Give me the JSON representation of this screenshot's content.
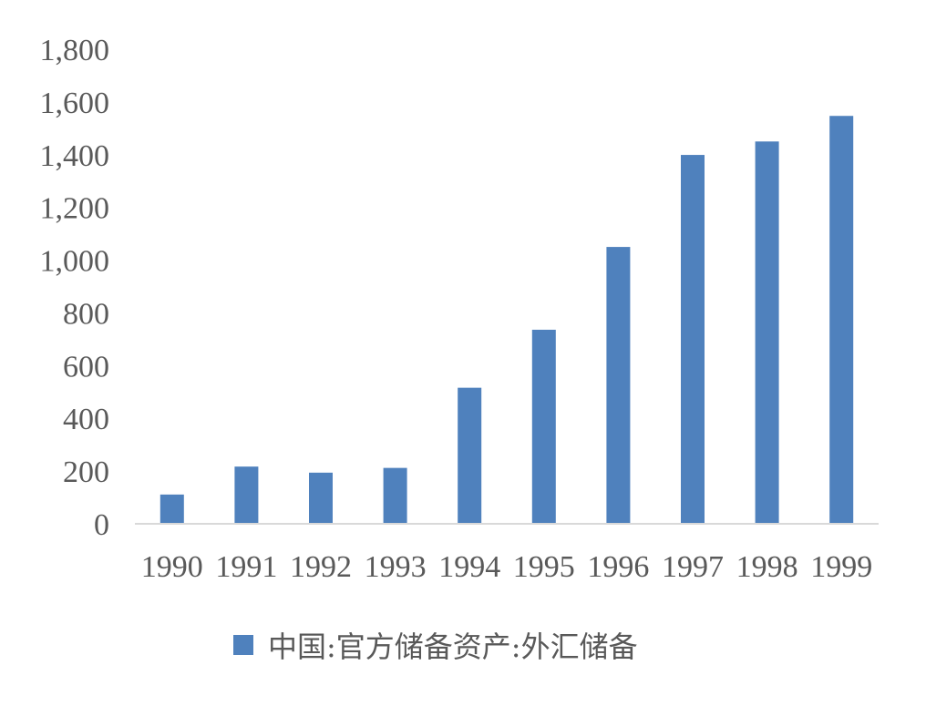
{
  "chart_data": {
    "type": "bar",
    "title": "",
    "xlabel": "",
    "ylabel": "",
    "categories": [
      "1990",
      "1991",
      "1992",
      "1993",
      "1994",
      "1995",
      "1996",
      "1997",
      "1998",
      "1999"
    ],
    "series": [
      {
        "name": "中国:官方储备资产:外汇储备",
        "color": "#4f81bd",
        "values": [
          111,
          217,
          194,
          212,
          516,
          736,
          1050,
          1399,
          1450,
          1547
        ]
      }
    ],
    "ylim": [
      0,
      1800
    ],
    "yticks": [
      "0",
      "200",
      "400",
      "600",
      "800",
      "1,000",
      "1,200",
      "1,400",
      "1,600",
      "1,800"
    ],
    "grid": false,
    "legend_position": "bottom"
  }
}
